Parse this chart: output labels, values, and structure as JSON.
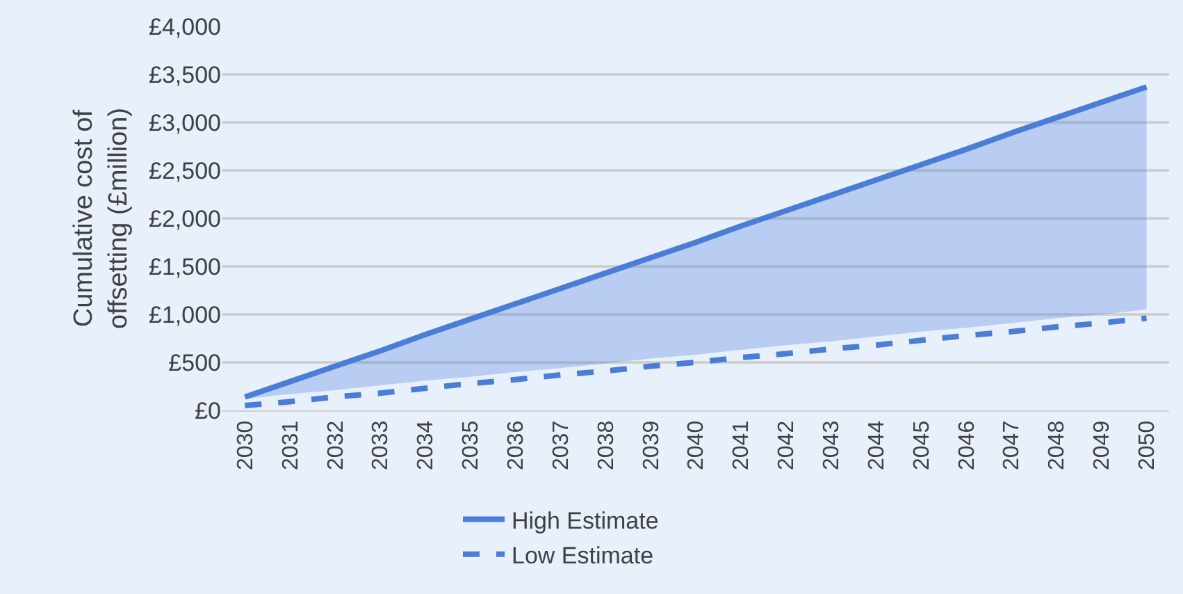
{
  "chart_data": {
    "type": "line",
    "ylabel": "Cumulative cost of offsetting (£million)",
    "categories": [
      "2030",
      "2031",
      "2032",
      "2033",
      "2034",
      "2035",
      "2036",
      "2037",
      "2038",
      "2039",
      "2040",
      "2041",
      "2042",
      "2043",
      "2044",
      "2045",
      "2046",
      "2047",
      "2048",
      "2049",
      "2050"
    ],
    "series": [
      {
        "name": "High Estimate",
        "color": "#4a7dd6",
        "line_style": "solid",
        "values": [
          140,
          300,
          460,
          620,
          790,
          950,
          1110,
          1270,
          1430,
          1590,
          1750,
          1920,
          2080,
          2240,
          2400,
          2560,
          2720,
          2890,
          3050,
          3210,
          3370
        ],
        "lower": [
          120,
          170,
          210,
          260,
          310,
          350,
          400,
          440,
          490,
          540,
          580,
          630,
          680,
          720,
          770,
          820,
          860,
          910,
          960,
          1000,
          1050
        ],
        "upper": [
          140,
          300,
          460,
          620,
          790,
          950,
          1110,
          1270,
          1430,
          1590,
          1750,
          1920,
          2080,
          2240,
          2400,
          2560,
          2720,
          2890,
          3050,
          3210,
          3370
        ]
      },
      {
        "name": "Low Estimate",
        "color": "#4a7dd6",
        "line_style": "dashed",
        "values": [
          50,
          90,
          140,
          180,
          230,
          280,
          320,
          370,
          410,
          460,
          500,
          550,
          590,
          640,
          680,
          730,
          780,
          820,
          870,
          910,
          960
        ]
      }
    ],
    "ylim": [
      0,
      4000
    ],
    "yticks": [
      {
        "value": 0,
        "label": "£0"
      },
      {
        "value": 500,
        "label": "£500"
      },
      {
        "value": 1000,
        "label": "£1,000"
      },
      {
        "value": 1500,
        "label": "£1,500"
      },
      {
        "value": 2000,
        "label": "£2,000"
      },
      {
        "value": 2500,
        "label": "£2,500"
      },
      {
        "value": 3000,
        "label": "£3,000"
      },
      {
        "value": 3500,
        "label": "£3,500"
      },
      {
        "value": 4000,
        "label": "£4,000"
      }
    ],
    "grid": "y",
    "legend": "bottom",
    "marker": "none"
  }
}
